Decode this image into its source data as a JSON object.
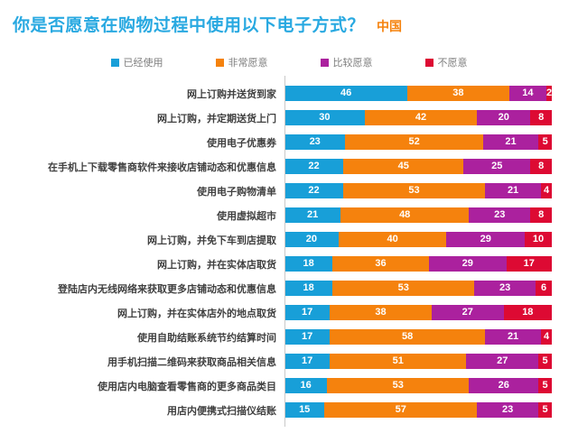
{
  "page": {
    "title": "你是否愿意在购物过程中使用以下电子方式？",
    "region_label": "中国"
  },
  "colors": {
    "title": "#29A9E1",
    "region": "#F5820D",
    "category_label": "#404040",
    "legend_text": "#7F7F7F",
    "axis_line": "#C9C9C9",
    "value_text": "#FFFFFF",
    "series": [
      "#189FD8",
      "#F5820D",
      "#AB219E",
      "#DD0A33"
    ]
  },
  "legend": {
    "items": [
      "已经使用",
      "非常愿意",
      "比较愿意",
      "不愿意"
    ]
  },
  "chart_data": {
    "type": "bar",
    "variant": "horizontal_stacked_100_percent",
    "title": "你是否愿意在购物过程中使用以下电子方式？",
    "subtitle": "中国",
    "legend_position": "top",
    "grid": false,
    "x_range_percent": [
      0,
      100
    ],
    "value_labels": "inside_segments_white",
    "categories": [
      "网上订购并送货到家",
      "网上订购，并定期送货上门",
      "使用电子优惠券",
      "在手机上下载零售商软件来接收店铺动态和优惠信息",
      "使用电子购物清单",
      "使用虚拟超市",
      "网上订购，并免下车到店提取",
      "网上订购，并在实体店取货",
      "登陆店内无线网络来获取更多店铺动态和优惠信息",
      "网上订购，并在实体店外的地点取货",
      "使用自助结账系统节约结算时间",
      "用手机扫描二维码来获取商品相关信息",
      "使用店内电脑查看零售商的更多商品类目",
      "用店内便携式扫描仪结账"
    ],
    "series": [
      {
        "name": "已经使用",
        "color": "#189FD8",
        "values": [
          46,
          30,
          23,
          22,
          22,
          21,
          20,
          18,
          18,
          17,
          17,
          17,
          16,
          15
        ]
      },
      {
        "name": "非常愿意",
        "color": "#F5820D",
        "values": [
          38,
          42,
          52,
          45,
          53,
          48,
          40,
          36,
          53,
          38,
          58,
          51,
          53,
          57
        ]
      },
      {
        "name": "比较愿意",
        "color": "#AB219E",
        "values": [
          14,
          20,
          21,
          25,
          21,
          23,
          29,
          29,
          23,
          27,
          21,
          27,
          26,
          23
        ]
      },
      {
        "name": "不愿意",
        "color": "#DD0A33",
        "values": [
          2,
          8,
          5,
          8,
          4,
          8,
          10,
          17,
          6,
          18,
          4,
          5,
          5,
          5
        ]
      }
    ]
  }
}
